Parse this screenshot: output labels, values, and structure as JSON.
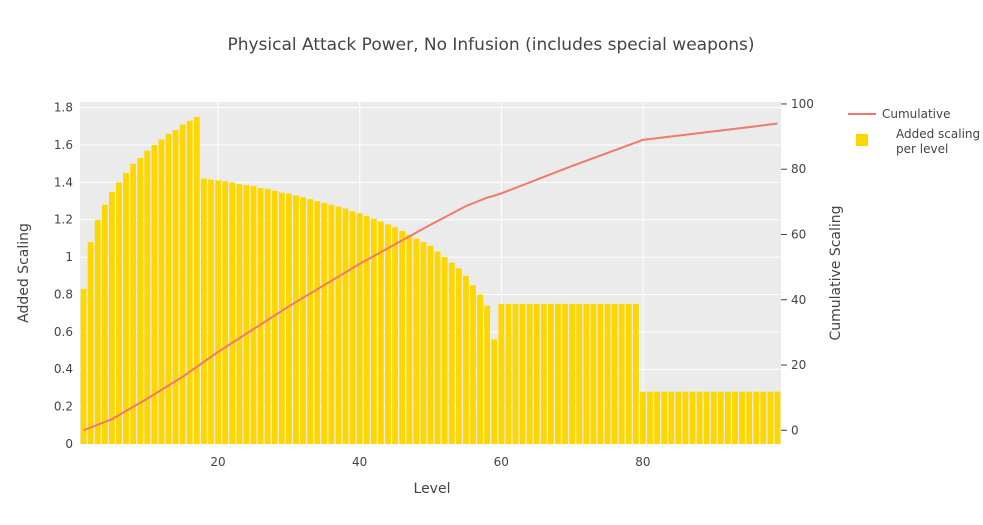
{
  "chart_data": {
    "type": "bar",
    "title": "Physical Attack Power, No Infusion (includes special weapons)",
    "xlabel": "Level",
    "ylabel": "Added Scaling",
    "y2label": "Cumulative Scaling",
    "xlim": [
      0.5,
      99.5
    ],
    "ylim": [
      0,
      1.83
    ],
    "y2lim": [
      -4.2,
      100.6
    ],
    "x_ticks": [
      20,
      40,
      60,
      80
    ],
    "y_ticks": [
      0,
      0.2,
      0.4,
      0.6,
      0.8,
      1,
      1.2,
      1.4,
      1.6,
      1.8
    ],
    "y_tick_labels": [
      "0",
      "0.2",
      "0.4",
      "0.6",
      "0.8",
      "1",
      "1.2",
      "1.4",
      "1.6",
      "1.8"
    ],
    "y2_ticks": [
      0,
      20,
      40,
      60,
      80,
      100
    ],
    "y2_tick_labels": [
      "0",
      "20",
      "40",
      "60",
      "80",
      "100"
    ],
    "grid": true,
    "legend_position": "right",
    "colors": {
      "bars": "#FFD700",
      "line": "#F07A6A",
      "plot_bg": "#EBEBEB",
      "grid": "#FFFFFF",
      "text": "#444444"
    },
    "series": [
      {
        "name": "Added scaling per level",
        "legend_lines": [
          "Added scaling",
          "per level"
        ],
        "type": "bar",
        "x": [
          1,
          2,
          3,
          4,
          5,
          6,
          7,
          8,
          9,
          10,
          11,
          12,
          13,
          14,
          15,
          16,
          17,
          18,
          19,
          20,
          21,
          22,
          23,
          24,
          25,
          26,
          27,
          28,
          29,
          30,
          31,
          32,
          33,
          34,
          35,
          36,
          37,
          38,
          39,
          40,
          41,
          42,
          43,
          44,
          45,
          46,
          47,
          48,
          49,
          50,
          51,
          52,
          53,
          54,
          55,
          56,
          57,
          58,
          59,
          60,
          61,
          62,
          63,
          64,
          65,
          66,
          67,
          68,
          69,
          70,
          71,
          72,
          73,
          74,
          75,
          76,
          77,
          78,
          79,
          80,
          81,
          82,
          83,
          84,
          85,
          86,
          87,
          88,
          89,
          90,
          91,
          92,
          93,
          94,
          95,
          96,
          97,
          98,
          99
        ],
        "values": [
          0.83,
          1.08,
          1.2,
          1.28,
          1.35,
          1.4,
          1.45,
          1.5,
          1.53,
          1.57,
          1.6,
          1.63,
          1.66,
          1.68,
          1.71,
          1.73,
          1.75,
          1.42,
          1.415,
          1.41,
          1.405,
          1.4,
          1.39,
          1.385,
          1.38,
          1.37,
          1.365,
          1.355,
          1.345,
          1.34,
          1.33,
          1.32,
          1.31,
          1.3,
          1.29,
          1.28,
          1.27,
          1.26,
          1.245,
          1.235,
          1.22,
          1.205,
          1.19,
          1.175,
          1.16,
          1.14,
          1.12,
          1.1,
          1.08,
          1.06,
          1.03,
          1.0,
          0.97,
          0.94,
          0.9,
          0.85,
          0.8,
          0.74,
          0.56,
          0.75,
          0.75,
          0.75,
          0.75,
          0.75,
          0.75,
          0.75,
          0.75,
          0.75,
          0.75,
          0.75,
          0.75,
          0.75,
          0.75,
          0.75,
          0.75,
          0.75,
          0.75,
          0.75,
          0.75,
          0.28,
          0.28,
          0.28,
          0.28,
          0.28,
          0.28,
          0.28,
          0.28,
          0.28,
          0.28,
          0.28,
          0.28,
          0.28,
          0.28,
          0.28,
          0.28,
          0.28,
          0.28,
          0.28,
          0.28
        ]
      },
      {
        "name": "Cumulative",
        "type": "line",
        "axis": "y2",
        "x": [
          1,
          5,
          10,
          15,
          18,
          20,
          25,
          30,
          35,
          40,
          45,
          50,
          55,
          58,
          59,
          60,
          65,
          70,
          75,
          80,
          85,
          90,
          95,
          99
        ],
        "values": [
          0,
          3.4,
          9.7,
          16.4,
          21,
          24,
          31,
          38,
          44.5,
          51,
          57,
          63,
          68.7,
          71.3,
          71.9,
          72.6,
          76.8,
          81,
          85,
          89,
          90.3,
          91.6,
          92.9,
          94
        ]
      }
    ]
  }
}
